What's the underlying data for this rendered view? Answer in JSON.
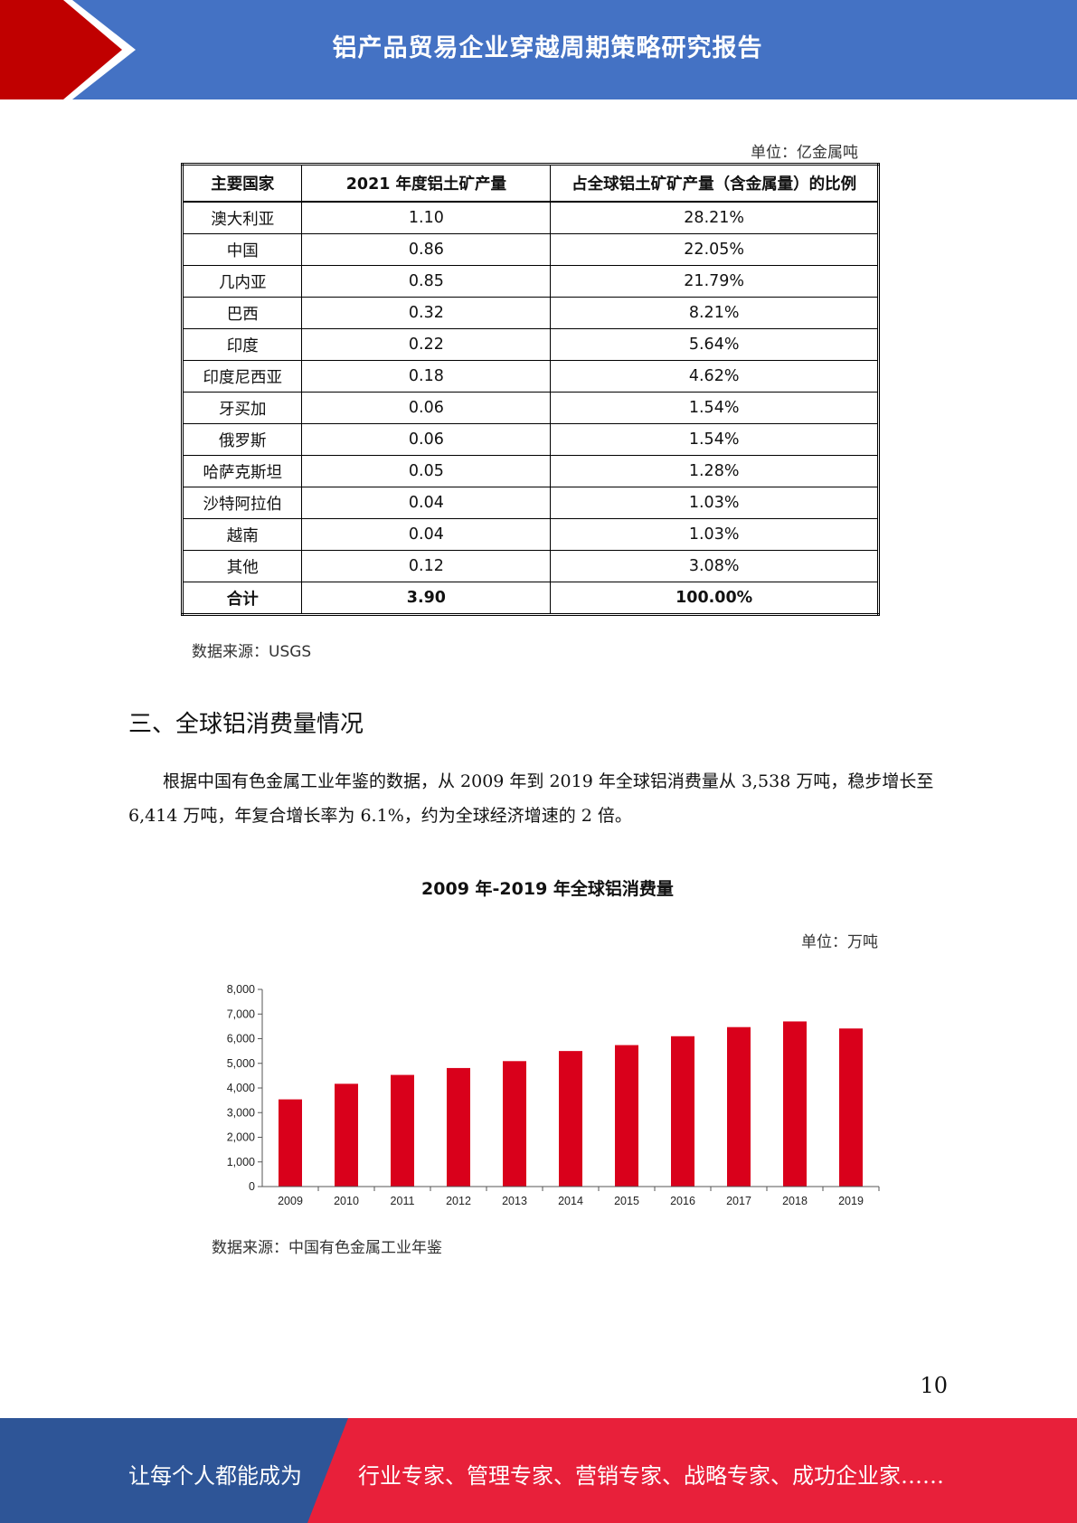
{
  "header": {
    "title": "铝产品贸易企业穿越周期策略研究报告",
    "colors": {
      "band": "#4472c4",
      "accent": "#c00000"
    }
  },
  "table": {
    "unit": "单位：亿金属吨",
    "headers": [
      "主要国家",
      "2021 年度铝土矿产量",
      "占全球铝土矿矿产量（含金属量）的比例"
    ],
    "rows": [
      [
        "澳大利亚",
        "1.10",
        "28.21%"
      ],
      [
        "中国",
        "0.86",
        "22.05%"
      ],
      [
        "几内亚",
        "0.85",
        "21.79%"
      ],
      [
        "巴西",
        "0.32",
        "8.21%"
      ],
      [
        "印度",
        "0.22",
        "5.64%"
      ],
      [
        "印度尼西亚",
        "0.18",
        "4.62%"
      ],
      [
        "牙买加",
        "0.06",
        "1.54%"
      ],
      [
        "俄罗斯",
        "0.06",
        "1.54%"
      ],
      [
        "哈萨克斯坦",
        "0.05",
        "1.28%"
      ],
      [
        "沙特阿拉伯",
        "0.04",
        "1.03%"
      ],
      [
        "越南",
        "0.04",
        "1.03%"
      ],
      [
        "其他",
        "0.12",
        "3.08%"
      ]
    ],
    "total": [
      "合计",
      "3.90",
      "100.00%"
    ],
    "source": "数据来源：USGS"
  },
  "section": {
    "title": "三、全球铝消费量情况",
    "paragraph": "根据中国有色金属工业年鉴的数据，从 2009 年到 2019 年全球铝消费量从 3,538 万吨，稳步增长至 6,414 万吨，年复合增长率为 6.1%，约为全球经济增速的 2 倍。"
  },
  "chart_data": {
    "type": "bar",
    "title": "2009 年-2019 年全球铝消费量",
    "unit": "单位：万吨",
    "source": "数据来源：中国有色金属工业年鉴",
    "categories": [
      "2009",
      "2010",
      "2011",
      "2012",
      "2013",
      "2014",
      "2015",
      "2016",
      "2017",
      "2018",
      "2019"
    ],
    "values": [
      3538,
      4170,
      4530,
      4810,
      5090,
      5500,
      5740,
      6100,
      6470,
      6700,
      6414
    ],
    "ylim": [
      0,
      8000
    ],
    "yticks": [
      "0",
      "1,000",
      "2,000",
      "3,000",
      "4,000",
      "5,000",
      "6,000",
      "7,000",
      "8,000"
    ],
    "bar_color": "#d9001b",
    "grid": false,
    "legend": "none"
  },
  "page": {
    "number": "10"
  },
  "footer": {
    "left": "让每个人都能成为",
    "right": "行业专家、管理专家、营销专家、战略专家、成功企业家……",
    "colors": {
      "left": "#2e5597",
      "right": "#e8203a"
    }
  }
}
